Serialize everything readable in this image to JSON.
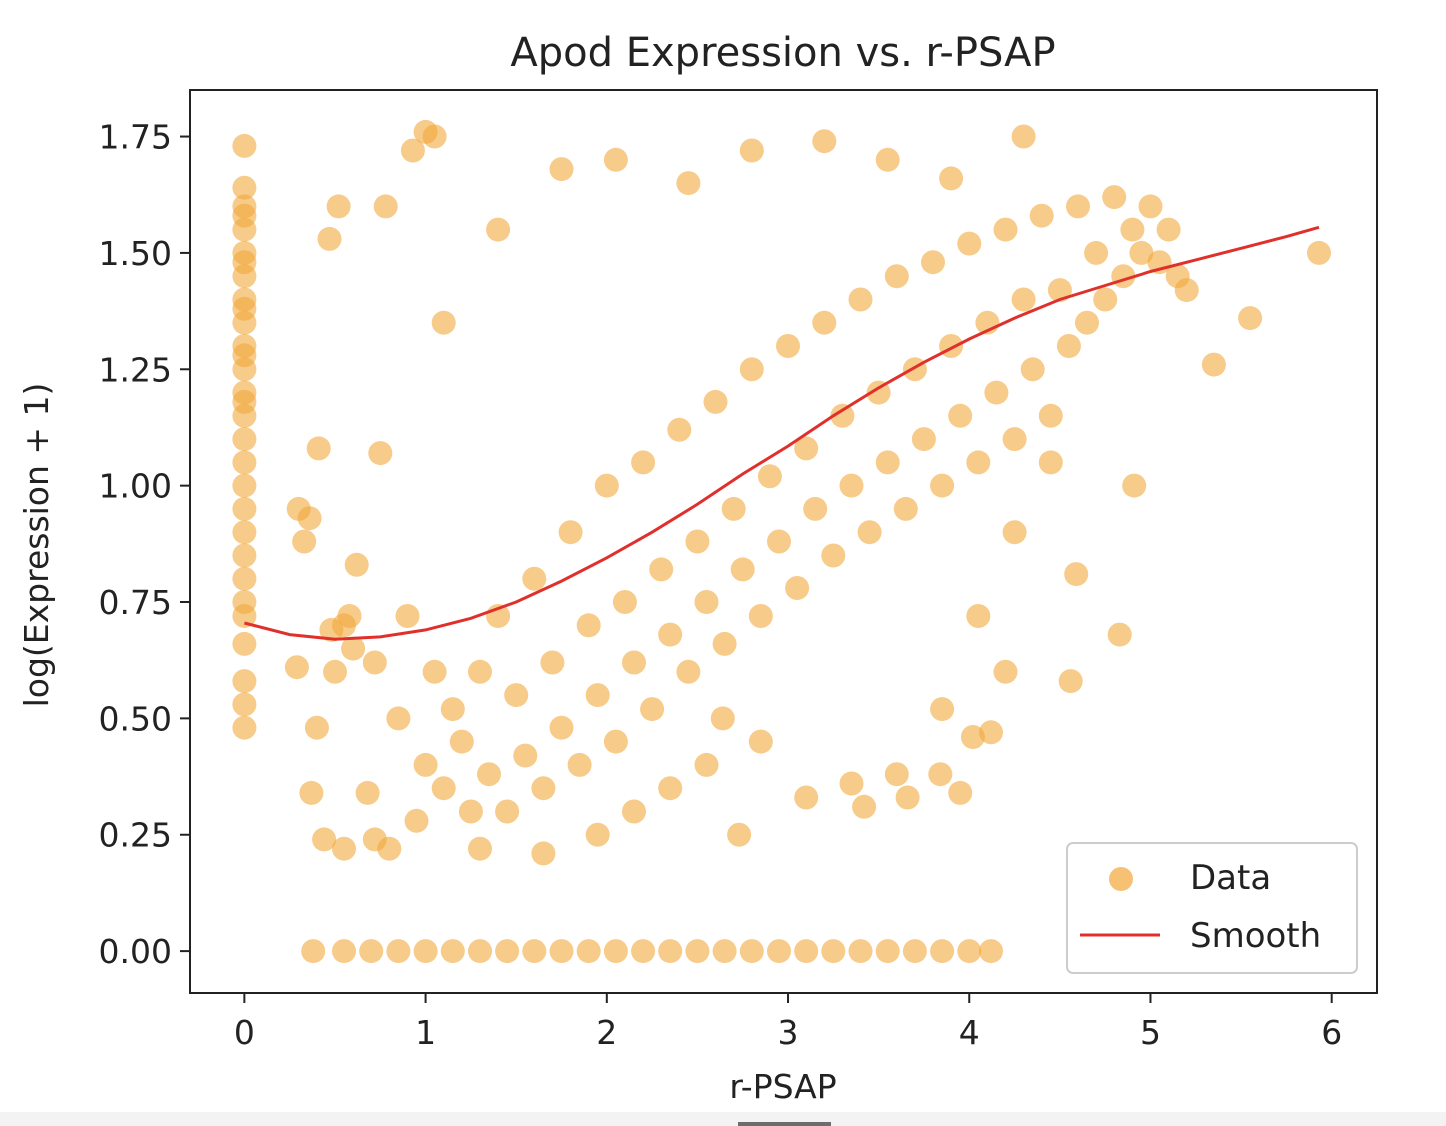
{
  "chart_data": {
    "type": "scatter",
    "title": "Apod Expression vs. r-PSAP",
    "xlabel": "r-PSAP",
    "ylabel": "log(Expression + 1)",
    "xlim": [
      -0.3,
      6.25
    ],
    "ylim": [
      -0.09,
      1.85
    ],
    "xticks": [
      "0",
      "1",
      "2",
      "3",
      "4",
      "5",
      "6"
    ],
    "yticks": [
      "0.00",
      "0.25",
      "0.50",
      "0.75",
      "1.00",
      "1.25",
      "1.50",
      "1.75"
    ],
    "grid": false,
    "legend": {
      "position": "lower-right",
      "entries": [
        "Data",
        "Smooth"
      ]
    },
    "colors": {
      "data": "#f2a93b",
      "smooth": "#e0302b"
    },
    "series": [
      {
        "name": "Data",
        "kind": "scatter",
        "x": [
          0,
          0,
          0,
          0,
          0,
          0,
          0,
          0,
          0,
          0,
          0,
          0,
          0,
          0,
          0,
          0,
          0,
          0,
          0,
          0,
          0,
          0,
          0,
          0,
          0,
          0,
          0,
          0,
          0,
          0,
          0.29,
          0.37,
          0.4,
          0.44,
          0.48,
          0.5,
          0.55,
          0.58,
          0.62,
          0.68,
          0.72,
          0.75,
          0.8,
          0.85,
          0.9,
          0.95,
          1.0,
          1.05,
          1.1,
          1.15,
          1.2,
          1.25,
          1.3,
          1.35,
          1.4,
          1.45,
          1.5,
          1.55,
          1.6,
          1.65,
          1.7,
          1.75,
          1.8,
          1.85,
          1.9,
          1.95,
          2.0,
          2.05,
          2.1,
          2.15,
          2.2,
          2.25,
          2.3,
          2.35,
          2.4,
          2.45,
          2.5,
          2.55,
          2.6,
          2.65,
          2.7,
          2.75,
          2.8,
          2.85,
          2.9,
          2.95,
          3.0,
          3.05,
          3.1,
          3.15,
          3.2,
          3.25,
          3.3,
          3.35,
          3.4,
          3.45,
          3.5,
          3.55,
          3.6,
          3.65,
          3.7,
          3.75,
          3.8,
          3.85,
          3.9,
          3.95,
          4.0,
          4.05,
          4.1,
          4.15,
          4.2,
          4.25,
          4.3,
          4.35,
          4.4,
          4.45,
          4.5,
          4.55,
          4.6,
          4.65,
          4.7,
          4.75,
          4.8,
          4.85,
          4.9,
          4.95,
          5.0,
          5.05,
          5.1,
          5.15,
          5.2,
          5.35,
          5.55,
          5.93,
          4.91,
          4.83,
          4.59,
          4.56,
          3.95,
          4.02,
          4.12,
          4.2,
          3.84,
          3.66,
          3.42,
          2.73,
          2.64,
          1.0,
          1.05,
          0.93,
          0.78,
          0.52,
          0.47,
          0.41,
          0.36,
          0.3,
          0.33,
          0.6,
          0.55,
          0.72,
          1.3,
          1.65,
          1.95,
          2.15,
          2.35,
          2.55,
          2.85,
          3.1,
          3.35,
          3.6,
          3.85,
          4.05,
          4.25,
          4.45,
          1.1,
          1.4,
          1.75,
          2.05,
          2.45,
          2.8,
          3.2,
          3.55,
          3.9,
          4.3,
          0.38,
          0.55,
          0.7,
          0.85,
          1.0,
          1.15,
          1.3,
          1.45,
          1.6,
          1.75,
          1.9,
          2.05,
          2.2,
          2.35,
          2.5,
          2.65,
          2.8,
          2.95,
          3.1,
          3.25,
          3.4,
          3.55,
          3.7,
          3.85,
          4.0,
          4.12
        ],
        "y": [
          1.73,
          1.64,
          1.6,
          1.55,
          1.5,
          1.45,
          1.4,
          1.35,
          1.3,
          1.25,
          1.2,
          1.15,
          1.1,
          1.05,
          1.0,
          0.95,
          0.9,
          0.85,
          0.8,
          0.75,
          0.72,
          0.66,
          0.58,
          0.53,
          0.48,
          1.58,
          1.48,
          1.38,
          1.28,
          1.18,
          0.61,
          0.34,
          0.48,
          0.24,
          0.69,
          0.6,
          0.22,
          0.72,
          0.83,
          0.34,
          0.62,
          1.07,
          0.22,
          0.5,
          0.72,
          0.28,
          0.4,
          0.6,
          0.35,
          0.52,
          0.45,
          0.3,
          0.6,
          0.38,
          0.72,
          0.3,
          0.55,
          0.42,
          0.8,
          0.35,
          0.62,
          0.48,
          0.9,
          0.4,
          0.7,
          0.55,
          1.0,
          0.45,
          0.75,
          0.62,
          1.05,
          0.52,
          0.82,
          0.68,
          1.12,
          0.6,
          0.88,
          0.75,
          1.18,
          0.66,
          0.95,
          0.82,
          1.25,
          0.72,
          1.02,
          0.88,
          1.3,
          0.78,
          1.08,
          0.95,
          1.35,
          0.85,
          1.15,
          1.0,
          1.4,
          0.9,
          1.2,
          1.05,
          1.45,
          0.95,
          1.25,
          1.1,
          1.48,
          1.0,
          1.3,
          1.15,
          1.52,
          1.05,
          1.35,
          1.2,
          1.55,
          1.1,
          1.4,
          1.25,
          1.58,
          1.15,
          1.42,
          1.3,
          1.6,
          1.35,
          1.5,
          1.4,
          1.62,
          1.45,
          1.55,
          1.5,
          1.6,
          1.48,
          1.55,
          1.45,
          1.42,
          1.26,
          1.36,
          1.5,
          1.0,
          0.68,
          0.81,
          0.58,
          0.34,
          0.46,
          0.47,
          0.6,
          0.38,
          0.33,
          0.31,
          0.25,
          0.5,
          1.76,
          1.75,
          1.72,
          1.6,
          1.6,
          1.53,
          1.08,
          0.93,
          0.95,
          0.88,
          0.65,
          0.7,
          0.24,
          0.22,
          0.21,
          0.25,
          0.3,
          0.35,
          0.4,
          0.45,
          0.33,
          0.36,
          0.38,
          0.52,
          0.72,
          0.9,
          1.05,
          1.35,
          1.55,
          1.68,
          1.7,
          1.65,
          1.72,
          1.74,
          1.7,
          1.66,
          1.75,
          0,
          0,
          0,
          0,
          0,
          0,
          0,
          0,
          0,
          0,
          0,
          0,
          0,
          0,
          0,
          0,
          0,
          0,
          0,
          0,
          0,
          0,
          0,
          0,
          0,
          0
        ]
      },
      {
        "name": "Smooth",
        "kind": "line",
        "x": [
          0.0,
          0.25,
          0.5,
          0.75,
          1.0,
          1.25,
          1.5,
          1.75,
          2.0,
          2.25,
          2.5,
          2.75,
          3.0,
          3.25,
          3.5,
          3.75,
          4.0,
          4.25,
          4.5,
          4.75,
          5.0,
          5.25,
          5.5,
          5.75,
          5.93
        ],
        "y": [
          0.705,
          0.68,
          0.67,
          0.675,
          0.69,
          0.715,
          0.75,
          0.795,
          0.845,
          0.9,
          0.96,
          1.025,
          1.085,
          1.15,
          1.21,
          1.265,
          1.315,
          1.36,
          1.4,
          1.43,
          1.46,
          1.485,
          1.51,
          1.535,
          1.555
        ]
      }
    ]
  }
}
